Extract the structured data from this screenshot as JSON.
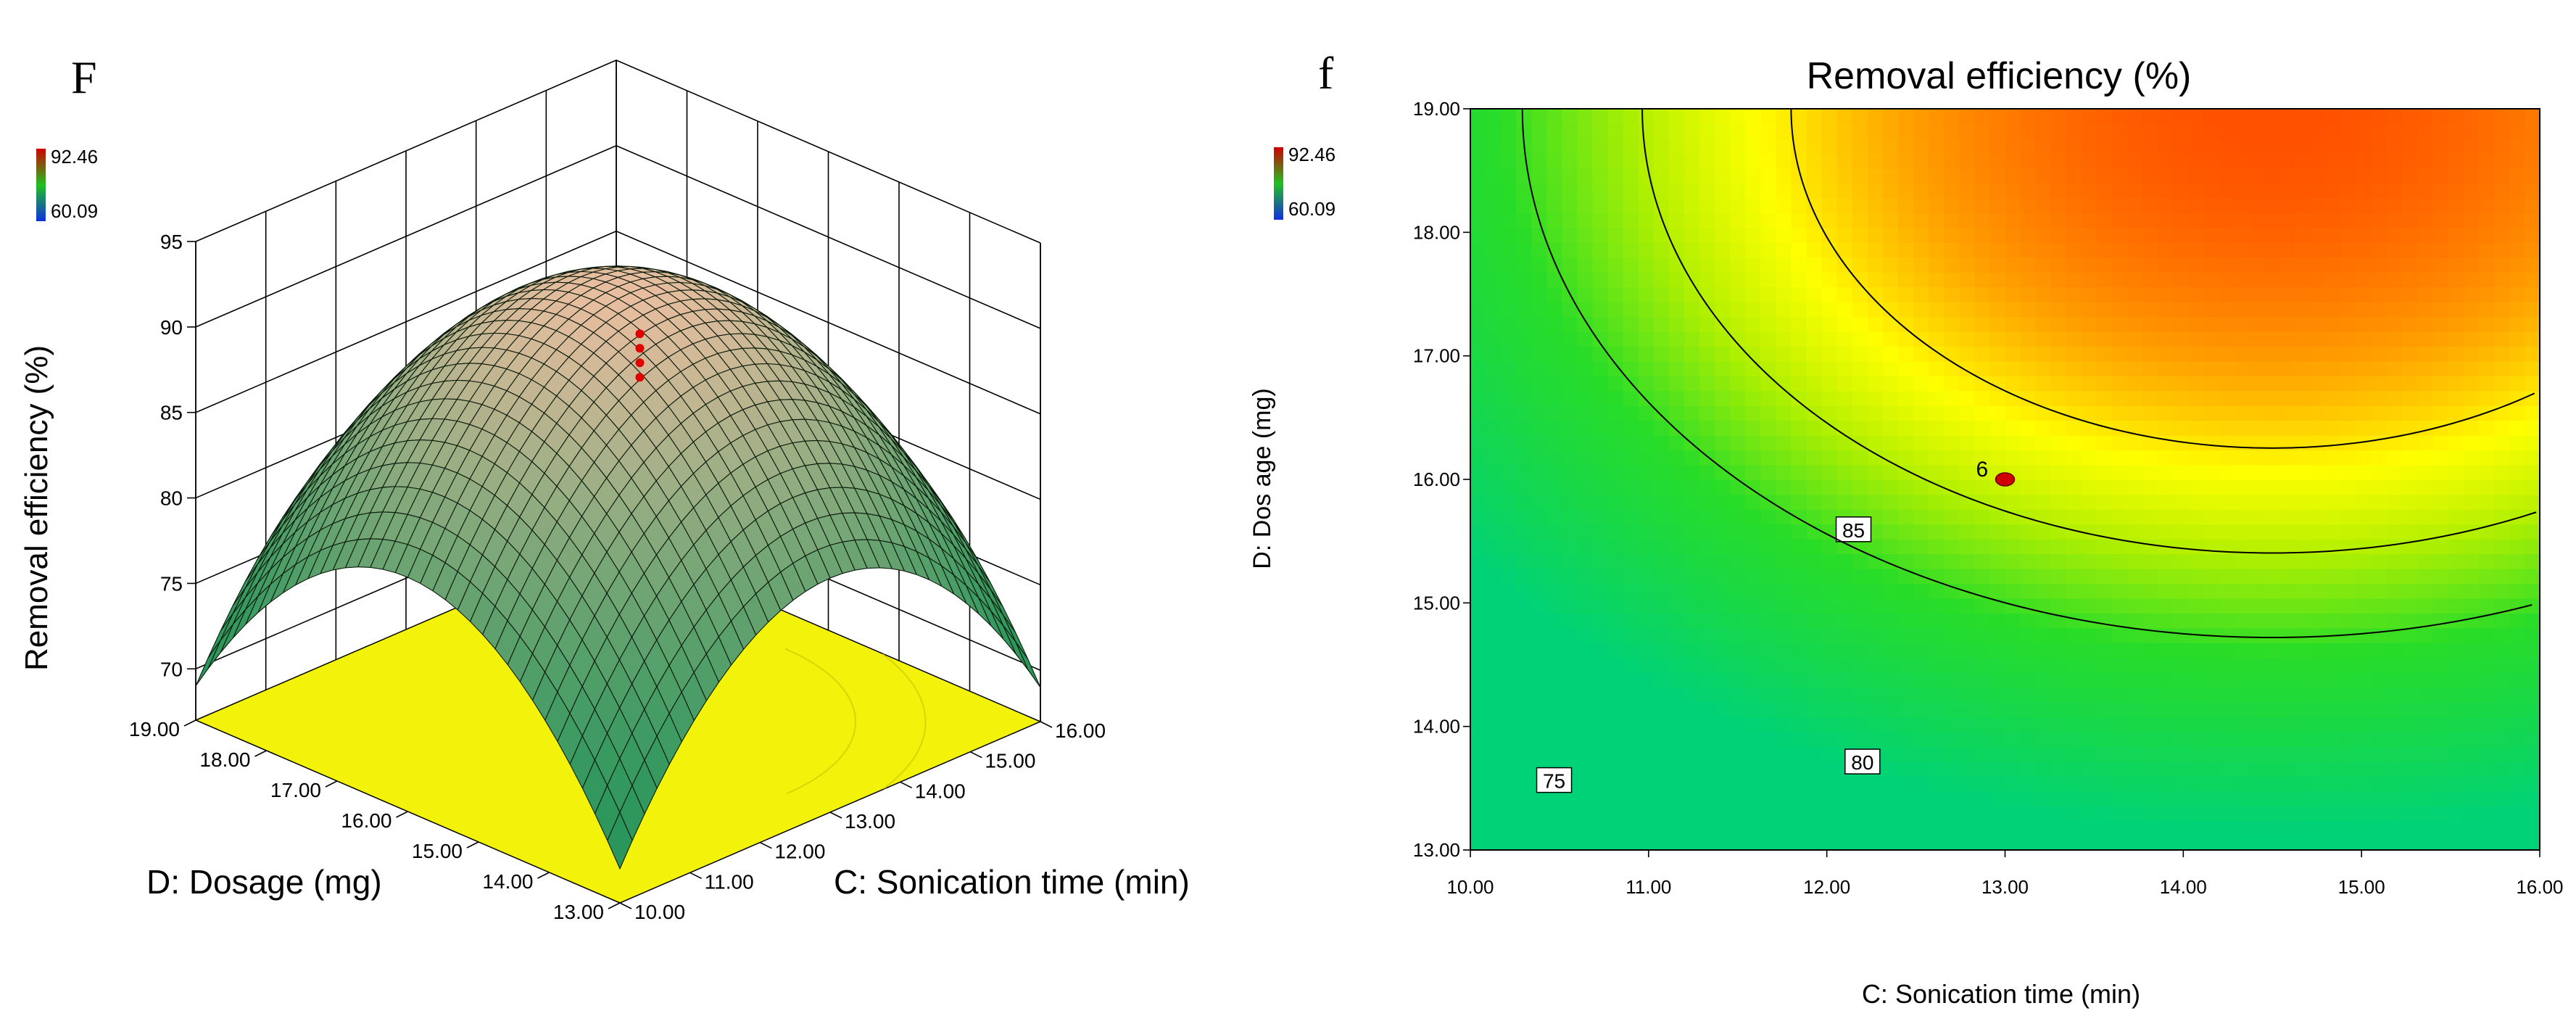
{
  "chart_data": [
    {
      "panel_label": "F",
      "type": "surface3d",
      "zlabel": "Removal efficiency (%)",
      "xlabel": "C: Sonication time (min)",
      "ylabel": "D: Dosage (mg)",
      "x_ticks": [
        "10.00",
        "11.00",
        "12.00",
        "13.00",
        "14.00",
        "15.00",
        "16.00"
      ],
      "y_ticks": [
        "13.00",
        "14.00",
        "15.00",
        "16.00",
        "17.00",
        "18.00",
        "19.00"
      ],
      "z_ticks": [
        "70",
        "75",
        "80",
        "85",
        "90",
        "95"
      ],
      "xlim": [
        10,
        16
      ],
      "ylim": [
        13,
        19
      ],
      "zlim": [
        67,
        95
      ],
      "design_points_value": [
        92.46
      ],
      "color_bar": {
        "high": "92.46",
        "low": "60.09",
        "high_color": "#cc0000",
        "low_color": "#0000cc"
      },
      "model": {
        "peak_x": 13.0,
        "peak_y": 16.0,
        "peak_z": 92.4,
        "corner_z": 69.0
      }
    },
    {
      "panel_label": "f",
      "type": "contour",
      "title": "Removal efficiency (%)",
      "xlabel": "C: Sonication time (min)",
      "ylabel": "D: Dos age (mg)",
      "x_ticks": [
        "10.00",
        "11.00",
        "12.00",
        "13.00",
        "14.00",
        "15.00",
        "16.00"
      ],
      "y_ticks": [
        "13.00",
        "14.00",
        "15.00",
        "16.00",
        "17.00",
        "18.00",
        "19.00"
      ],
      "xlim": [
        10,
        16
      ],
      "ylim": [
        13,
        19
      ],
      "color_bar": {
        "high": "92.46",
        "low": "60.09",
        "high_color": "#cc0000",
        "low_color": "#0000cc"
      },
      "contour_levels": [
        {
          "level": 85,
          "label": "85",
          "label_x": 12.15,
          "label_y": 15.59
        },
        {
          "level": 80,
          "label": "80",
          "label_x": 12.2,
          "label_y": 13.71
        },
        {
          "level": 75,
          "label": "75",
          "label_x": 10.47,
          "label_y": 13.56
        }
      ],
      "design_point": {
        "x": 13.0,
        "y": 16.0,
        "label": "6"
      },
      "model": {
        "center_x": 14.5,
        "center_y": 19.0,
        "peak_value": 92.0,
        "a": 0.6,
        "b": 0.58
      }
    }
  ],
  "colors": {
    "surface_low": "#3a9a5e",
    "surface_high": "#e8b898",
    "floor": "#f2f20a",
    "contour_high": "#ff5a00",
    "contour_mid": "#ffff00",
    "contour_low": "#00e070"
  }
}
